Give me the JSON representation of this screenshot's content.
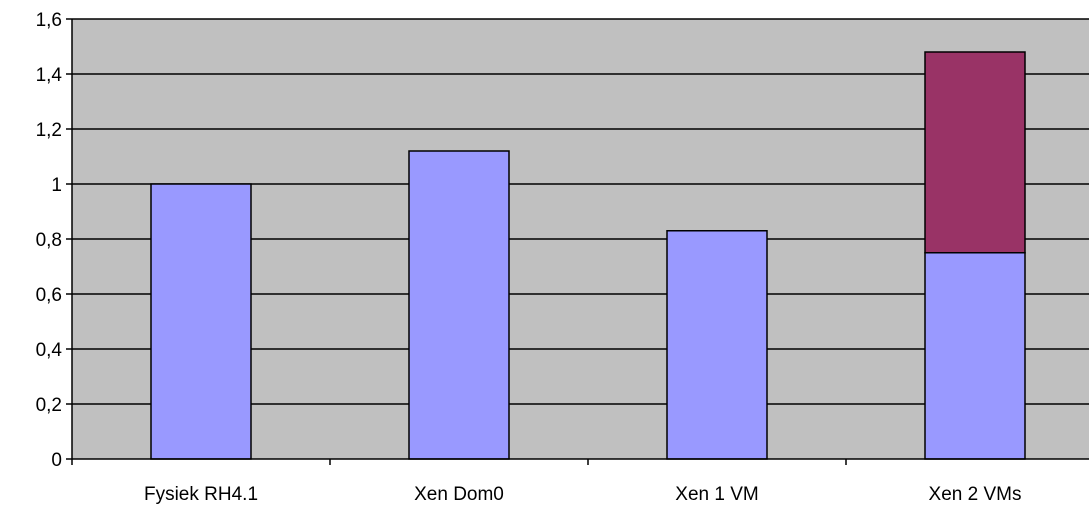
{
  "chart_data": {
    "type": "bar",
    "stacked": true,
    "categories": [
      "Fysiek RH4.1",
      "Xen Dom0",
      "Xen 1 VM",
      "Xen 2 VMs"
    ],
    "series": [
      {
        "values": [
          1.0,
          1.12,
          0.83,
          0.75
        ],
        "color": "#9999ff"
      },
      {
        "values": [
          0,
          0,
          0,
          0.73
        ],
        "color": "#993366"
      }
    ],
    "yticks": [
      "0",
      "0,2",
      "0,4",
      "0,6",
      "0,8",
      "1",
      "1,2",
      "1,4",
      "1,6"
    ],
    "ylim": [
      0,
      1.6
    ],
    "ystep": 0.2,
    "grid": true,
    "plot_background": "#c0c0c0",
    "legend": "none",
    "title": "",
    "xlabel": "",
    "ylabel": ""
  }
}
